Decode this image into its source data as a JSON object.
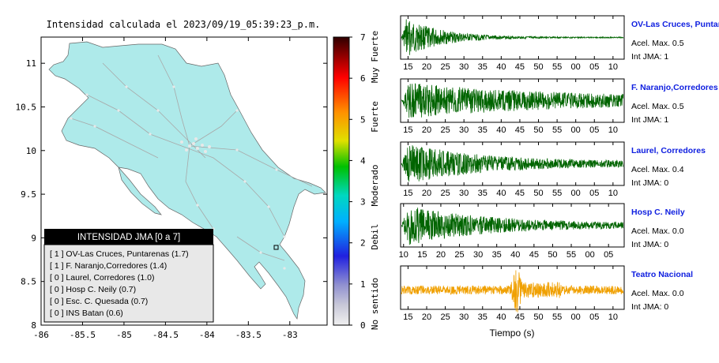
{
  "title": "Intensidad calculada el 2023/09/19_05:39:23_p.m.",
  "map": {
    "x_ticks": [
      "-86",
      "-85.5",
      "-85",
      "-84.5",
      "-84",
      "-83.5",
      "-83"
    ],
    "y_ticks": [
      "11",
      "10.5",
      "10",
      "9.5",
      "9",
      "8.5",
      "8"
    ],
    "xlim": [
      -86,
      -82.55
    ],
    "ylim": [
      8,
      11.3
    ],
    "land_color": "#aeeaea"
  },
  "legend": {
    "title": "INTENSIDAD JMA [0 a 7]",
    "entries": [
      "[ 1 ] OV-Las Cruces, Puntarenas (1.7)",
      "[ 1 ] F. Naranjo,Corredores (1.4)",
      "[ 0 ] Laurel, Corredores (1.0)",
      "[ 0 ] Hosp C. Neily (0.7)",
      "[ 0 ] Esc. C. Quesada (0.7)",
      "[ 0 ] INS Batan (0.6)"
    ]
  },
  "colorbar": {
    "ticks": [
      "0",
      "1",
      "2",
      "3",
      "4",
      "5",
      "6",
      "7"
    ],
    "labels": [
      "No sentido",
      "Debil",
      "Moderado",
      "Fuerte",
      "Muy Fuerte"
    ],
    "range": [
      0,
      7
    ]
  },
  "chart_data": [
    {
      "type": "line",
      "station": "OV-Las Cruces, Puntarenas",
      "accel": "Acel. Max. 0.5",
      "int": "Int JMA: 1",
      "color": "#006400",
      "x_ticks": [
        "15",
        "20",
        "25",
        "30",
        "35",
        "40",
        "45",
        "50",
        "55",
        "00",
        "05",
        "10"
      ],
      "x_start": 13.0,
      "envelope": "decay"
    },
    {
      "type": "line",
      "station": "F. Naranjo,Corredores",
      "accel": "Acel. Max. 0.5",
      "int": "Int JMA: 1",
      "color": "#006400",
      "x_ticks": [
        "15",
        "20",
        "25",
        "30",
        "35",
        "40",
        "45",
        "50",
        "55",
        "00",
        "05",
        "10"
      ],
      "x_start": 13.0,
      "envelope": "sustained"
    },
    {
      "type": "line",
      "station": "Laurel, Corredores",
      "accel": "Acel. Max. 0.4",
      "int": "Int JMA: 0",
      "color": "#006400",
      "x_ticks": [
        "15",
        "20",
        "25",
        "30",
        "35",
        "40",
        "45",
        "50",
        "55",
        "00",
        "05",
        "10"
      ],
      "x_start": 13.0,
      "envelope": "decay-slow"
    },
    {
      "type": "line",
      "station": "Hosp C. Neily",
      "accel": "Acel. Max. 0.0",
      "int": "Int JMA: 0",
      "color": "#006400",
      "x_ticks": [
        "10",
        "15",
        "20",
        "25",
        "30",
        "35",
        "40",
        "45",
        "50",
        "55",
        "00",
        "05"
      ],
      "x_start": 9.2,
      "envelope": "decay-slow"
    },
    {
      "type": "line",
      "station": "Teatro Nacional",
      "accel": "Acel. Max. 0.0",
      "int": "Int JMA: 0",
      "color": "#f0a000",
      "x_ticks": [
        "15",
        "20",
        "25",
        "30",
        "35",
        "40",
        "45",
        "50",
        "55",
        "00",
        "05",
        "10"
      ],
      "x_start": 13.0,
      "envelope": "spike"
    }
  ],
  "xlabel": "Tiempo (s)"
}
